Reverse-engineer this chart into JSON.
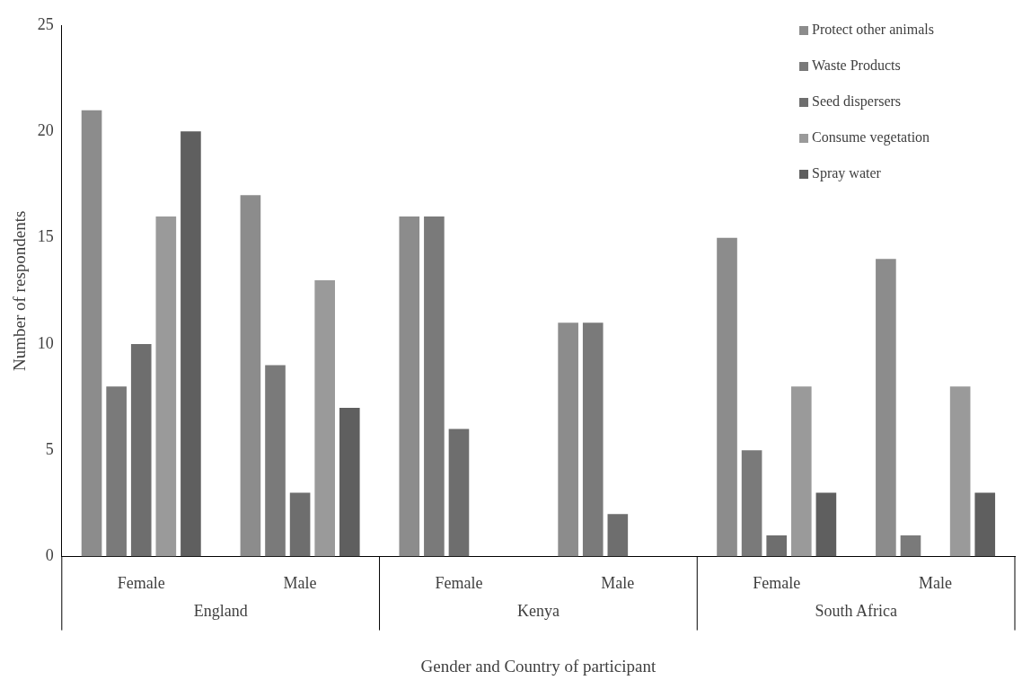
{
  "chart_data": {
    "type": "bar",
    "xlabel": "Gender and Country of participant",
    "ylabel": "Number of respondents",
    "categories": [
      "Female",
      "Male",
      "Female",
      "Male",
      "Female",
      "Male"
    ],
    "annotations": [
      "England",
      "Kenya",
      "South Africa"
    ],
    "series": [
      {
        "name": "Protect other animals",
        "color": "#8c8c8c",
        "values": [
          21,
          17,
          16,
          11,
          15,
          14
        ]
      },
      {
        "name": "Waste Products",
        "color": "#7a7a7a",
        "values": [
          8,
          9,
          16,
          11,
          5,
          1
        ]
      },
      {
        "name": "Seed dispersers",
        "color": "#6e6e6e",
        "values": [
          10,
          3,
          6,
          2,
          1,
          0
        ]
      },
      {
        "name": "Consume vegetation",
        "color": "#9a9a9a",
        "values": [
          16,
          13,
          0,
          0,
          8,
          8
        ]
      },
      {
        "name": "Spray water",
        "color": "#5f5f5f",
        "values": [
          20,
          7,
          0,
          0,
          3,
          3
        ]
      }
    ],
    "ylim": [
      0,
      25
    ],
    "yticks": [
      0,
      5,
      10,
      15,
      20,
      25
    ],
    "grid": false,
    "legend": "top right"
  }
}
